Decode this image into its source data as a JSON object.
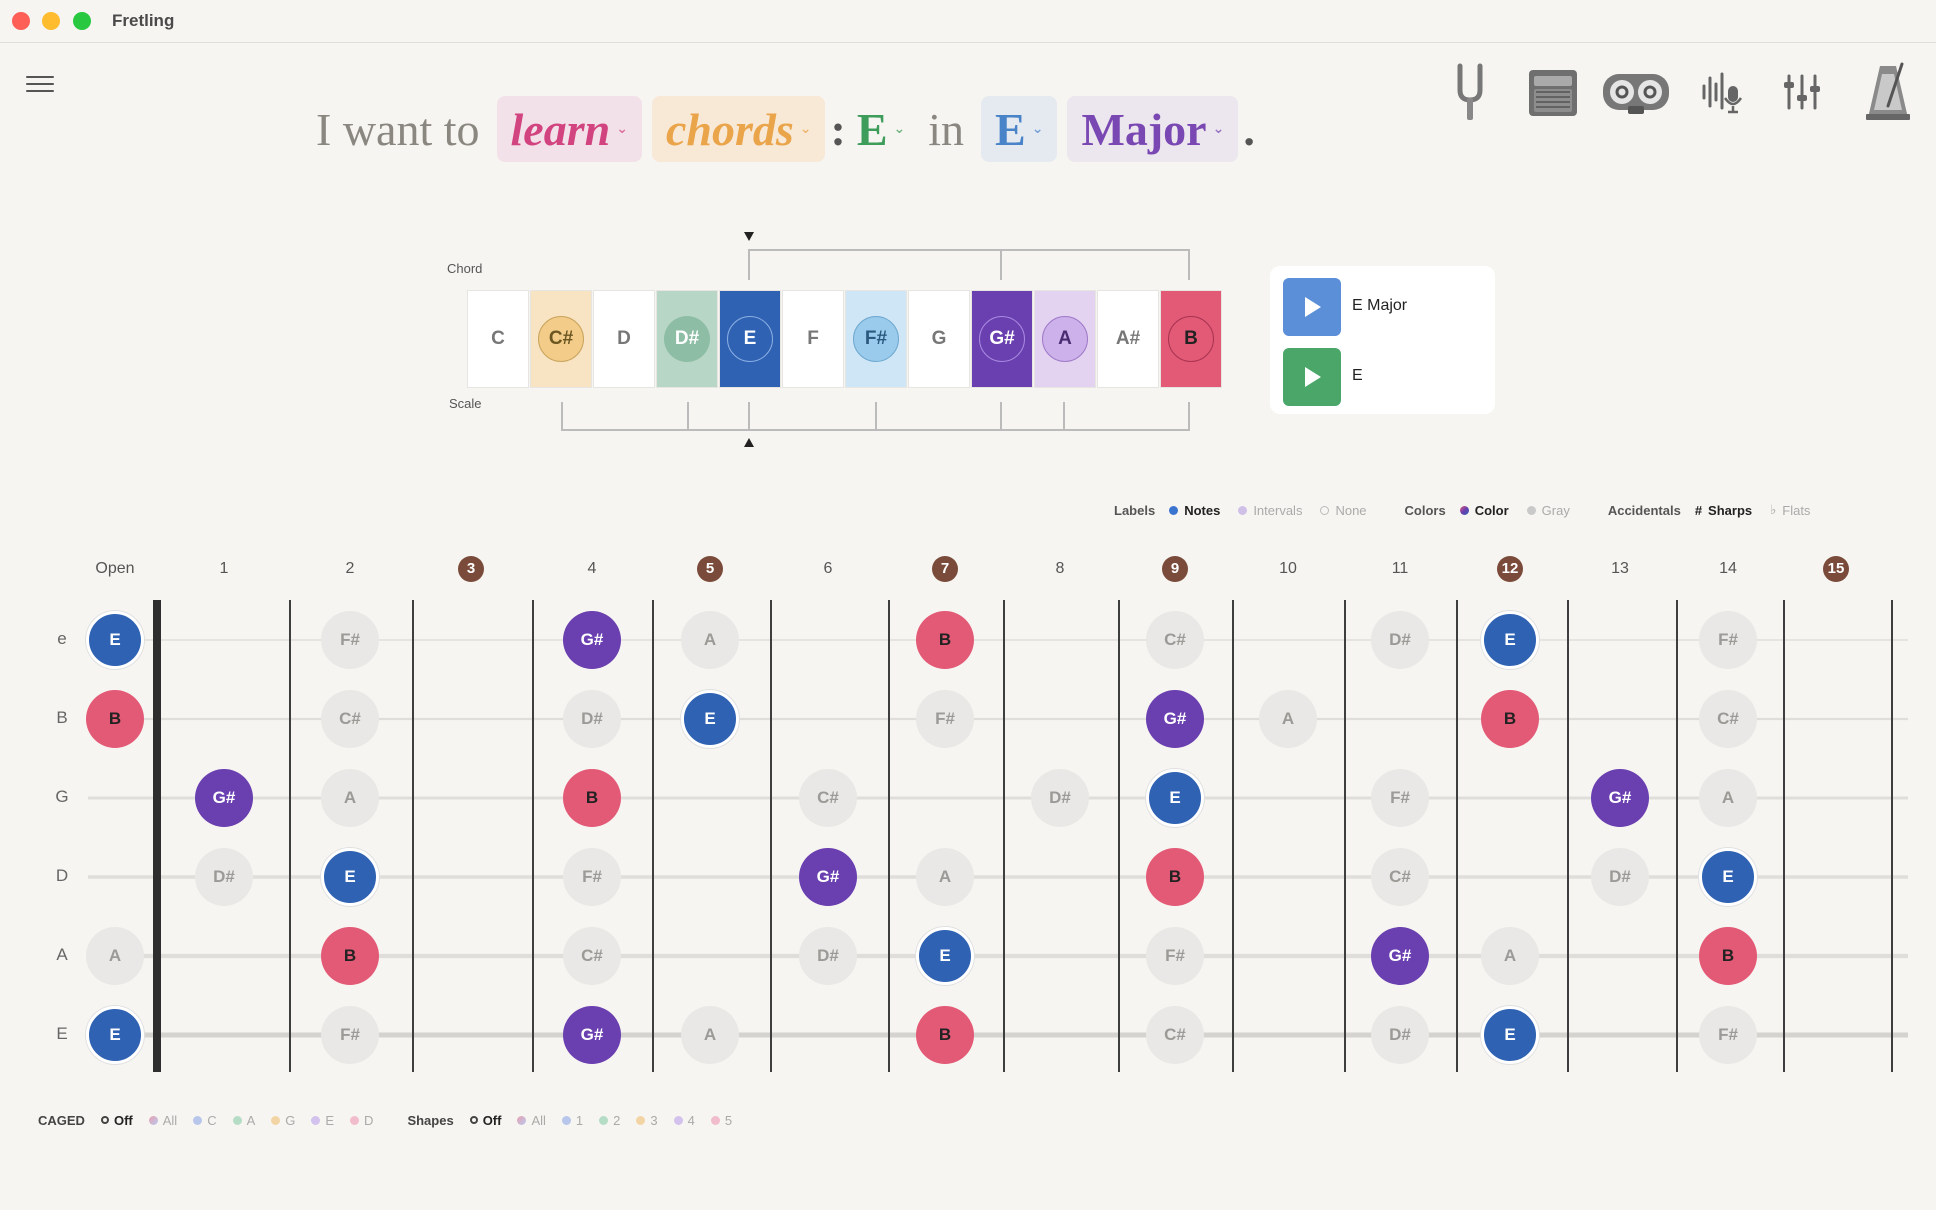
{
  "window": {
    "title": "Fretling"
  },
  "sentence": {
    "prefix": "I want to",
    "mode": "learn",
    "topic": "chords",
    "colon": ":",
    "chord_root": "E",
    "in": "in",
    "key": "E",
    "scale": "Major",
    "period": "."
  },
  "toolbar": {
    "tuner": "tuning-fork-icon",
    "amp": "amplifier-icon",
    "tape": "cassette-icon",
    "mic": "microphone-icon",
    "mixer": "mixer-sliders-icon",
    "metronome": "metronome-icon"
  },
  "note_strip": {
    "chord_label": "Chord",
    "scale_label": "Scale",
    "notes": [
      "C",
      "C#",
      "D",
      "D#",
      "E",
      "F",
      "F#",
      "G",
      "G#",
      "A",
      "A#",
      "B"
    ]
  },
  "playback": {
    "items": [
      {
        "label": "E Major",
        "color": "#5b8fd8"
      },
      {
        "label": "E",
        "color": "#4ba66a"
      }
    ]
  },
  "legend": {
    "labels_head": "Labels",
    "labels": [
      "Notes",
      "Intervals",
      "None"
    ],
    "colors_head": "Colors",
    "colors": [
      "Color",
      "Gray"
    ],
    "accidentals_head": "Accidentals",
    "accidentals": [
      "Sharps",
      "Flats"
    ],
    "sharp_glyph": "#",
    "flat_glyph": "♭"
  },
  "fretboard": {
    "fret_labels": [
      "Open",
      "1",
      "2",
      "3",
      "4",
      "5",
      "6",
      "7",
      "8",
      "9",
      "10",
      "11",
      "12",
      "13",
      "14",
      "15"
    ],
    "marker_frets": [
      3,
      5,
      7,
      9,
      12,
      15
    ],
    "strings": [
      "e",
      "B",
      "G",
      "D",
      "A",
      "E"
    ],
    "notes": {
      "e": [
        [
          "E",
          0
        ],
        [
          "F#",
          2
        ],
        [
          "G#",
          4
        ],
        [
          "A",
          5
        ],
        [
          "B",
          7
        ],
        [
          "C#",
          9
        ],
        [
          "D#",
          11
        ],
        [
          "E",
          12
        ],
        [
          "F#",
          14
        ]
      ],
      "B": [
        [
          "B",
          0
        ],
        [
          "C#",
          2
        ],
        [
          "D#",
          4
        ],
        [
          "E",
          5
        ],
        [
          "F#",
          7
        ],
        [
          "G#",
          9
        ],
        [
          "A",
          10
        ],
        [
          "B",
          12
        ],
        [
          "C#",
          14
        ]
      ],
      "G": [
        [
          "G#",
          1
        ],
        [
          "A",
          2
        ],
        [
          "B",
          4
        ],
        [
          "C#",
          6
        ],
        [
          "D#",
          8
        ],
        [
          "E",
          9
        ],
        [
          "F#",
          11
        ],
        [
          "G#",
          13
        ],
        [
          "A",
          14
        ]
      ],
      "D": [
        [
          "D#",
          1
        ],
        [
          "E",
          2
        ],
        [
          "F#",
          4
        ],
        [
          "G#",
          6
        ],
        [
          "A",
          7
        ],
        [
          "B",
          9
        ],
        [
          "C#",
          11
        ],
        [
          "D#",
          13
        ],
        [
          "E",
          14
        ]
      ],
      "A": [
        [
          "A",
          0
        ],
        [
          "B",
          2
        ],
        [
          "C#",
          4
        ],
        [
          "D#",
          6
        ],
        [
          "E",
          7
        ],
        [
          "F#",
          9
        ],
        [
          "G#",
          11
        ],
        [
          "A",
          12
        ],
        [
          "B",
          14
        ]
      ],
      "E": [
        [
          "E",
          0
        ],
        [
          "F#",
          2
        ],
        [
          "G#",
          4
        ],
        [
          "A",
          5
        ],
        [
          "B",
          7
        ],
        [
          "C#",
          9
        ],
        [
          "D#",
          11
        ],
        [
          "E",
          12
        ],
        [
          "F#",
          14
        ]
      ]
    }
  },
  "bottom": {
    "caged_head": "CAGED",
    "caged": [
      "Off",
      "All",
      "C",
      "A",
      "G",
      "E",
      "D"
    ],
    "shapes_head": "Shapes",
    "shapes": [
      "Off",
      "All",
      "1",
      "2",
      "3",
      "4",
      "5"
    ]
  },
  "colors": {
    "root": "#2f62b3",
    "third": "#6a3fb0",
    "fifth": "#e35a77",
    "marker": "#7a4b3b"
  }
}
